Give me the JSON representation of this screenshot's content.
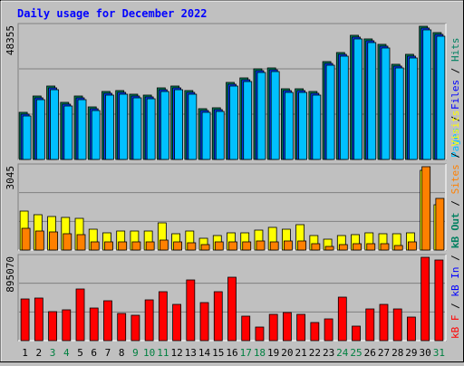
{
  "title": "Daily usage for December 2022",
  "x_axis": {
    "categories": [
      "1",
      "2",
      "3",
      "4",
      "5",
      "6",
      "7",
      "8",
      "9",
      "10",
      "11",
      "12",
      "13",
      "14",
      "15",
      "16",
      "17",
      "18",
      "19",
      "20",
      "21",
      "22",
      "23",
      "24",
      "25",
      "26",
      "27",
      "28",
      "29",
      "30",
      "31"
    ],
    "colors": [
      "#000000",
      "#000000",
      "#008040",
      "#008040",
      "#000000",
      "#000000",
      "#000000",
      "#000000",
      "#008040",
      "#008040",
      "#008040",
      "#000000",
      "#000000",
      "#000000",
      "#000000",
      "#000000",
      "#008040",
      "#008040",
      "#000000",
      "#000000",
      "#000000",
      "#000000",
      "#000000",
      "#008040",
      "#008040",
      "#000000",
      "#000000",
      "#000000",
      "#000000",
      "#000000",
      "#008040"
    ]
  },
  "legend_separator": " / ",
  "chart_data": [
    {
      "type": "bar",
      "ylim": [
        0,
        48355
      ],
      "legend": [
        {
          "text": "Pages",
          "color": "#00c0ff"
        },
        {
          "text": "Files",
          "color": "#0000ff"
        },
        {
          "text": "Hits",
          "color": "#008060"
        }
      ],
      "series": [
        {
          "name": "Hits",
          "color": "#00805c",
          "values": [
            17110,
            23030,
            26650,
            20730,
            23030,
            19080,
            24680,
            25010,
            23690,
            23360,
            25990,
            26650,
            25010,
            18430,
            18760,
            27970,
            29610,
            32900,
            33230,
            25660,
            25660,
            24680,
            35530,
            38820,
            45080,
            43760,
            41790,
            34550,
            38170,
            48355,
            46060
          ]
        },
        {
          "name": "Files",
          "color": "#0040ff",
          "values": [
            16450,
            22370,
            25990,
            20070,
            22370,
            18420,
            24020,
            24350,
            23030,
            22700,
            25330,
            25990,
            24350,
            17770,
            18100,
            27310,
            28950,
            32240,
            32570,
            25000,
            25000,
            24020,
            34870,
            38160,
            44420,
            43100,
            41130,
            33890,
            37510,
            47710,
            45400
          ]
        },
        {
          "name": "Pages",
          "color": "#00c0ff",
          "values": [
            15790,
            21710,
            25330,
            19410,
            21710,
            17760,
            23360,
            23690,
            22370,
            22040,
            24670,
            25330,
            23690,
            17110,
            17440,
            26650,
            28290,
            31580,
            31910,
            24340,
            24340,
            23360,
            34210,
            37500,
            43760,
            42440,
            40470,
            33230,
            36850,
            47050,
            44740
          ]
        }
      ]
    },
    {
      "type": "bar",
      "ylim": [
        0,
        3045
      ],
      "legend": [
        {
          "text": "kB Out",
          "color": "#008060"
        },
        {
          "text": "Sites",
          "color": "#ff8000"
        },
        {
          "text": "Visits",
          "color": "#ffff00"
        }
      ],
      "series": [
        {
          "name": "Visits",
          "color": "#ffff00",
          "values": [
            1423,
            1291,
            1225,
            1192,
            1158,
            761,
            629,
            695,
            695,
            695,
            993,
            596,
            695,
            430,
            530,
            629,
            629,
            728,
            828,
            761,
            927,
            530,
            397,
            530,
            563,
            629,
            596,
            596,
            629,
            2913,
            1655
          ]
        },
        {
          "name": "Sites",
          "color": "#ff8000",
          "values": [
            794,
            695,
            662,
            596,
            563,
            298,
            298,
            298,
            298,
            298,
            364,
            298,
            265,
            199,
            298,
            298,
            298,
            331,
            298,
            331,
            331,
            232,
            132,
            199,
            232,
            232,
            232,
            166,
            298,
            3045,
            1887
          ]
        }
      ]
    },
    {
      "type": "bar",
      "ylim": [
        0,
        895070
      ],
      "legend": [
        {
          "text": "kB F",
          "color": "#ff0000"
        },
        {
          "text": "kB In",
          "color": "#0000ff"
        },
        {
          "text": "kB Out",
          "color": "#008060"
        }
      ],
      "series": [
        {
          "name": "kB F",
          "color": "#ff0000",
          "values": [
            447500,
            457300,
            311300,
            330800,
            554600,
            350200,
            428100,
            291900,
            272400,
            437800,
            525400,
            389200,
            651800,
            408600,
            525400,
            681000,
            262700,
            145900,
            282100,
            301600,
            282100,
            194600,
            233500,
            467000,
            155700,
            340500,
            389200,
            340500,
            253000,
            895070,
            865900
          ]
        }
      ]
    }
  ]
}
